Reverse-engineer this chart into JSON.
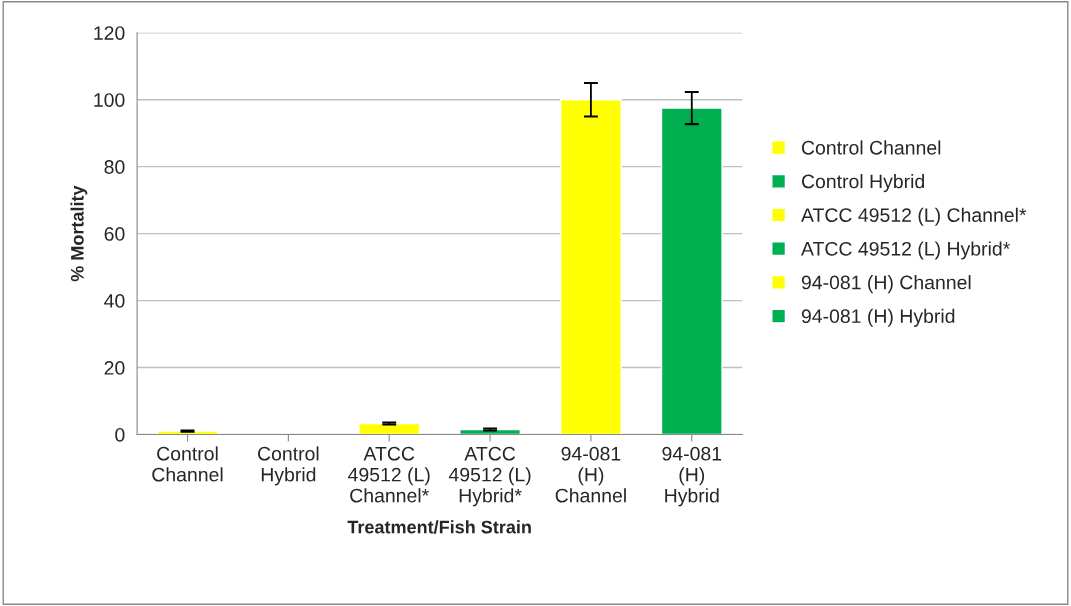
{
  "chart_data": {
    "type": "bar",
    "xlabel": "Treatment/Fish Strain",
    "ylabel": "% Mortality",
    "categories": [
      "Control\nChannel",
      "Control\nHybrid",
      "ATCC\n49512 (L)\nChannel*",
      "ATCC\n49512 (L)\nHybrid*",
      "94-081\n(H)\nChannel",
      "94-081\n(H)\nHybrid"
    ],
    "series": [
      {
        "name": "Control Channel",
        "color": "#ffff00",
        "values": [
          1,
          null,
          null,
          null,
          null,
          null
        ],
        "errors": [
          0.2,
          null,
          null,
          null,
          null,
          null
        ]
      },
      {
        "name": "Control Hybrid",
        "color": "#00b050",
        "values": [
          null,
          0,
          null,
          null,
          null,
          null
        ],
        "errors": [
          null,
          null,
          null,
          null,
          null,
          null
        ]
      },
      {
        "name": "ATCC 49512 (L) Channel*",
        "color": "#ffff00",
        "values": [
          null,
          null,
          3.3,
          null,
          null,
          null
        ],
        "errors": [
          null,
          null,
          0.3,
          null,
          null,
          null
        ]
      },
      {
        "name": "ATCC 49512 (L) Hybrid*",
        "color": "#00b050",
        "values": [
          null,
          null,
          null,
          1.5,
          null,
          null
        ],
        "errors": [
          null,
          null,
          null,
          0.3,
          null,
          null
        ]
      },
      {
        "name": "94-081 (H) Channel",
        "color": "#ffff00",
        "values": [
          null,
          null,
          null,
          null,
          100,
          null
        ],
        "errors": [
          null,
          null,
          null,
          null,
          5,
          null
        ]
      },
      {
        "name": "94-081 (H) Hybrid",
        "color": "#00b050",
        "values": [
          null,
          null,
          null,
          null,
          null,
          97.5
        ],
        "errors": [
          null,
          null,
          null,
          null,
          null,
          4.8
        ]
      }
    ],
    "ylim": [
      0,
      120
    ],
    "yticks": [
      0,
      20,
      40,
      60,
      80,
      100,
      120
    ],
    "grid": "y",
    "legend": "right"
  }
}
